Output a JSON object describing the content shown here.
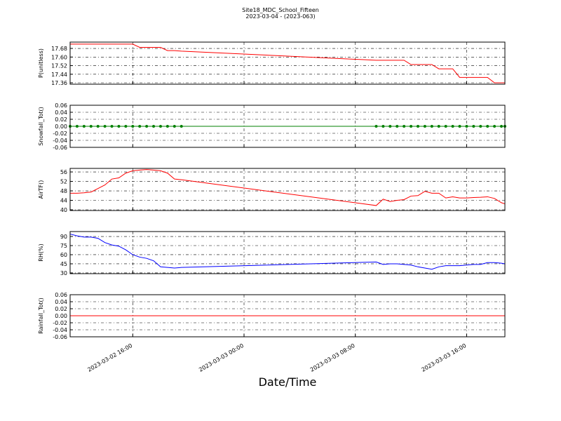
{
  "chart_data": [
    {
      "type": "line",
      "title": "Site18_MDC_School_Fifteen",
      "subtitle": "2023-03-04 - (2023-063)",
      "ylabel": "P(unitless)",
      "x": [
        "2023-03-02 11:30",
        "2023-03-02 12:00",
        "2023-03-02 12:30",
        "2023-03-02 13:00",
        "2023-03-02 13:30",
        "2023-03-02 14:00",
        "2023-03-02 14:30",
        "2023-03-02 15:00",
        "2023-03-02 15:30",
        "2023-03-02 16:00",
        "2023-03-02 16:30",
        "2023-03-02 17:00",
        "2023-03-02 17:30",
        "2023-03-02 18:00",
        "2023-03-02 18:30",
        "2023-03-02 19:00",
        "2023-03-02 19:30",
        "2023-03-03 09:30",
        "2023-03-03 10:00",
        "2023-03-03 10:30",
        "2023-03-03 11:00",
        "2023-03-03 11:30",
        "2023-03-03 12:00",
        "2023-03-03 12:30",
        "2023-03-03 13:00",
        "2023-03-03 13:30",
        "2023-03-03 14:00",
        "2023-03-03 14:30",
        "2023-03-03 15:00",
        "2023-03-03 15:30",
        "2023-03-03 16:00",
        "2023-03-03 16:30",
        "2023-03-03 17:00",
        "2023-03-03 17:30",
        "2023-03-03 18:00",
        "2023-03-03 18:30",
        "2023-03-03 18:45"
      ],
      "values": [
        17.72,
        17.72,
        17.72,
        17.72,
        17.72,
        17.72,
        17.72,
        17.72,
        17.72,
        17.72,
        17.69,
        17.69,
        17.69,
        17.69,
        17.66,
        17.66,
        17.655,
        17.57,
        17.57,
        17.57,
        17.57,
        17.57,
        17.53,
        17.53,
        17.53,
        17.53,
        17.49,
        17.49,
        17.49,
        17.41,
        17.41,
        17.41,
        17.41,
        17.41,
        17.36,
        17.36,
        17.36
      ],
      "color": "#ff0000",
      "xlim": [
        "2023-03-02 11:30",
        "2023-03-03 18:45"
      ],
      "xticks": [
        "2023-03-02 16:00",
        "2023-03-03 00:00",
        "2023-03-03 08:00",
        "2023-03-03 16:00"
      ],
      "ylim": [
        17.347,
        17.739
      ],
      "yticks": [
        17.36,
        17.44,
        17.52,
        {
          "value": 17.6,
          "label": "17.60"
        },
        17.68
      ],
      "grid": true
    },
    {
      "type": "line",
      "ylabel": "Snowfall_Tot()",
      "marker": "o",
      "x": [
        "2023-03-02 11:30",
        "2023-03-02 12:00",
        "2023-03-02 12:30",
        "2023-03-02 13:00",
        "2023-03-02 13:30",
        "2023-03-02 14:00",
        "2023-03-02 14:30",
        "2023-03-02 15:00",
        "2023-03-02 15:30",
        "2023-03-02 16:00",
        "2023-03-02 16:30",
        "2023-03-02 17:00",
        "2023-03-02 17:30",
        "2023-03-02 18:00",
        "2023-03-02 18:30",
        "2023-03-02 19:00",
        "2023-03-02 19:30",
        "2023-03-03 09:30",
        "2023-03-03 10:00",
        "2023-03-03 10:30",
        "2023-03-03 11:00",
        "2023-03-03 11:30",
        "2023-03-03 12:00",
        "2023-03-03 12:30",
        "2023-03-03 13:00",
        "2023-03-03 13:30",
        "2023-03-03 14:00",
        "2023-03-03 14:30",
        "2023-03-03 15:00",
        "2023-03-03 15:30",
        "2023-03-03 16:00",
        "2023-03-03 16:30",
        "2023-03-03 17:00",
        "2023-03-03 17:30",
        "2023-03-03 18:00",
        "2023-03-03 18:30",
        "2023-03-03 18:45"
      ],
      "values": [
        0,
        0,
        0,
        0,
        0,
        0,
        0,
        0,
        0,
        0,
        0,
        0,
        0,
        0,
        0,
        0,
        0,
        0,
        0,
        0,
        0,
        0,
        0,
        0,
        0,
        0,
        0,
        0,
        0,
        0,
        0,
        0,
        0,
        0,
        0,
        0,
        0
      ],
      "color": "#008000",
      "xlim": [
        "2023-03-02 11:30",
        "2023-03-03 18:45"
      ],
      "xticks": [
        "2023-03-02 16:00",
        "2023-03-03 00:00",
        "2023-03-03 08:00",
        "2023-03-03 16:00"
      ],
      "ylim": [
        -0.06,
        0.06
      ],
      "yticks": [
        -0.06,
        -0.04,
        -0.02,
        {
          "value": 0,
          "label": "0.00"
        },
        0.02,
        0.04,
        0.06
      ],
      "grid": true
    },
    {
      "type": "line",
      "ylabel": "AirTF()",
      "x": [
        "2023-03-02 11:30",
        "2023-03-02 12:00",
        "2023-03-02 12:30",
        "2023-03-02 13:00",
        "2023-03-02 13:30",
        "2023-03-02 14:00",
        "2023-03-02 14:30",
        "2023-03-02 15:00",
        "2023-03-02 15:30",
        "2023-03-02 16:00",
        "2023-03-02 16:30",
        "2023-03-02 17:00",
        "2023-03-02 17:30",
        "2023-03-02 18:00",
        "2023-03-02 18:30",
        "2023-03-02 19:00",
        "2023-03-02 19:30",
        "2023-03-03 09:30",
        "2023-03-03 10:00",
        "2023-03-03 10:30",
        "2023-03-03 11:00",
        "2023-03-03 11:30",
        "2023-03-03 12:00",
        "2023-03-03 12:30",
        "2023-03-03 13:00",
        "2023-03-03 13:30",
        "2023-03-03 14:00",
        "2023-03-03 14:30",
        "2023-03-03 15:00",
        "2023-03-03 15:30",
        "2023-03-03 16:00",
        "2023-03-03 16:30",
        "2023-03-03 17:00",
        "2023-03-03 17:30",
        "2023-03-03 18:00",
        "2023-03-03 18:30",
        "2023-03-03 18:45"
      ],
      "values": [
        47,
        47,
        47.2,
        47.5,
        49,
        50.5,
        53,
        53.5,
        55.5,
        56.5,
        56.8,
        57,
        56.8,
        56.5,
        55.5,
        53,
        52.7,
        41.8,
        44.5,
        43.5,
        44,
        44.3,
        45.8,
        46,
        47.8,
        47,
        47,
        45,
        45.5,
        45,
        45,
        45.2,
        45.3,
        45.5,
        44.8,
        43,
        42.5
      ],
      "color": "#ff0000",
      "xlim": [
        "2023-03-02 11:30",
        "2023-03-03 18:45"
      ],
      "xticks": [
        "2023-03-02 16:00",
        "2023-03-03 00:00",
        "2023-03-03 08:00",
        "2023-03-03 16:00"
      ],
      "ylim": [
        39.7,
        57.5
      ],
      "yticks": [
        40,
        44,
        48,
        52,
        56
      ],
      "grid": true
    },
    {
      "type": "line",
      "ylabel": "RH(%)",
      "x": [
        "2023-03-02 11:30",
        "2023-03-02 12:00",
        "2023-03-02 12:30",
        "2023-03-02 13:00",
        "2023-03-02 13:30",
        "2023-03-02 14:00",
        "2023-03-02 14:30",
        "2023-03-02 15:00",
        "2023-03-02 15:30",
        "2023-03-02 16:00",
        "2023-03-02 16:30",
        "2023-03-02 17:00",
        "2023-03-02 17:30",
        "2023-03-02 18:00",
        "2023-03-02 18:30",
        "2023-03-02 19:00",
        "2023-03-02 19:30",
        "2023-03-03 09:30",
        "2023-03-03 10:00",
        "2023-03-03 10:30",
        "2023-03-03 11:00",
        "2023-03-03 11:30",
        "2023-03-03 12:00",
        "2023-03-03 12:30",
        "2023-03-03 13:00",
        "2023-03-03 13:30",
        "2023-03-03 14:00",
        "2023-03-03 14:30",
        "2023-03-03 15:00",
        "2023-03-03 15:30",
        "2023-03-03 16:00",
        "2023-03-03 16:30",
        "2023-03-03 17:00",
        "2023-03-03 17:30",
        "2023-03-03 18:00",
        "2023-03-03 18:30",
        "2023-03-03 18:45"
      ],
      "values": [
        94,
        91,
        89,
        89,
        87,
        80,
        76,
        74,
        68,
        60,
        56,
        54,
        50,
        40,
        39,
        38,
        39,
        48,
        44,
        45,
        45,
        44,
        43,
        40,
        38,
        36,
        40,
        42,
        42,
        42,
        43,
        44,
        44,
        47,
        47,
        46,
        45
      ],
      "color": "#0000ff",
      "xlim": [
        "2023-03-02 11:30",
        "2023-03-03 18:45"
      ],
      "xticks": [
        "2023-03-02 16:00",
        "2023-03-03 00:00",
        "2023-03-03 08:00",
        "2023-03-03 16:00"
      ],
      "ylim": [
        28.8,
        98.1
      ],
      "yticks": [
        30,
        45,
        60,
        75,
        90
      ],
      "grid": true
    },
    {
      "type": "line",
      "ylabel": "Rainfall_Tot()",
      "xlabel": "Date/Time",
      "x": [
        "2023-03-02 11:30",
        "2023-03-02 12:00",
        "2023-03-02 12:30",
        "2023-03-02 13:00",
        "2023-03-02 13:30",
        "2023-03-02 14:00",
        "2023-03-02 14:30",
        "2023-03-02 15:00",
        "2023-03-02 15:30",
        "2023-03-02 16:00",
        "2023-03-02 16:30",
        "2023-03-02 17:00",
        "2023-03-02 17:30",
        "2023-03-02 18:00",
        "2023-03-02 18:30",
        "2023-03-02 19:00",
        "2023-03-02 19:30",
        "2023-03-03 09:30",
        "2023-03-03 10:00",
        "2023-03-03 10:30",
        "2023-03-03 11:00",
        "2023-03-03 11:30",
        "2023-03-03 12:00",
        "2023-03-03 12:30",
        "2023-03-03 13:00",
        "2023-03-03 13:30",
        "2023-03-03 14:00",
        "2023-03-03 14:30",
        "2023-03-03 15:00",
        "2023-03-03 15:30",
        "2023-03-03 16:00",
        "2023-03-03 16:30",
        "2023-03-03 17:00",
        "2023-03-03 17:30",
        "2023-03-03 18:00",
        "2023-03-03 18:30",
        "2023-03-03 18:45"
      ],
      "values": [
        0,
        0,
        0,
        0,
        0,
        0,
        0,
        0,
        0,
        0,
        0,
        0,
        0,
        0,
        0,
        0,
        0,
        0,
        0,
        0,
        0,
        0,
        0,
        0,
        0,
        0,
        0,
        0,
        0,
        0,
        0,
        0,
        0,
        0,
        0,
        0,
        0
      ],
      "color": "#ff0000",
      "xlim": [
        "2023-03-02 11:30",
        "2023-03-03 18:45"
      ],
      "xticks": [
        "2023-03-02 16:00",
        "2023-03-03 00:00",
        "2023-03-03 08:00",
        "2023-03-03 16:00"
      ],
      "ylim": [
        -0.06,
        0.06
      ],
      "yticks": [
        -0.06,
        -0.04,
        -0.02,
        {
          "value": 0,
          "label": "0.00"
        },
        0.02,
        0.04,
        0.06
      ],
      "grid": true
    }
  ]
}
